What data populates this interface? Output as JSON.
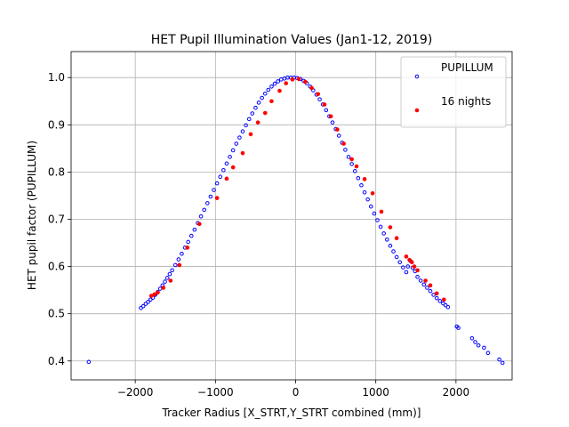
{
  "chart_data": {
    "type": "scatter",
    "title": "HET Pupil Illumination Values (Jan1-12, 2019)",
    "xlabel": "Tracker Radius [X_STRT,Y_STRT combined (mm)]",
    "ylabel": "HET pupil factor (PUPILLUM)",
    "xlim": [
      -2800,
      2700
    ],
    "ylim": [
      0.36,
      1.055
    ],
    "xticks": [
      -2000,
      -1000,
      0,
      1000,
      2000
    ],
    "yticks": [
      0.4,
      0.5,
      0.6,
      0.7,
      0.8,
      0.9,
      1.0
    ],
    "xtick_labels": [
      "−2000",
      "−1000",
      "0",
      "1000",
      "2000"
    ],
    "ytick_labels": [
      "0.4",
      "0.5",
      "0.6",
      "0.7",
      "0.8",
      "0.9",
      "1.0"
    ],
    "grid": true,
    "legend_position": "top-right",
    "series": [
      {
        "name": "PUPILLUM",
        "color": "#0000ff",
        "marker": "open-circle",
        "x": [
          -2580,
          -1930,
          -1900,
          -1870,
          -1840,
          -1810,
          -1780,
          -1750,
          -1720,
          -1690,
          -1660,
          -1630,
          -1600,
          -1570,
          -1540,
          -1500,
          -1460,
          -1420,
          -1380,
          -1340,
          -1300,
          -1260,
          -1220,
          -1180,
          -1140,
          -1100,
          -1060,
          -1020,
          -980,
          -940,
          -900,
          -860,
          -820,
          -780,
          -740,
          -700,
          -660,
          -620,
          -580,
          -540,
          -500,
          -460,
          -420,
          -380,
          -340,
          -300,
          -260,
          -220,
          -180,
          -140,
          -100,
          -60,
          -20,
          20,
          60,
          100,
          140,
          180,
          220,
          260,
          300,
          340,
          380,
          420,
          460,
          500,
          540,
          580,
          620,
          660,
          700,
          740,
          780,
          820,
          860,
          900,
          940,
          980,
          1020,
          1060,
          1100,
          1140,
          1180,
          1220,
          1260,
          1300,
          1340,
          1380,
          1400,
          1430,
          1460,
          1490,
          1520,
          1560,
          1600,
          1640,
          1680,
          1720,
          1760,
          1800,
          1840,
          1870,
          1900,
          2010,
          2030,
          2200,
          2240,
          2280,
          2350,
          2400,
          2540,
          2580
        ],
        "y": [
          0.398,
          0.512,
          0.516,
          0.521,
          0.525,
          0.53,
          0.534,
          0.54,
          0.546,
          0.553,
          0.56,
          0.568,
          0.576,
          0.584,
          0.592,
          0.603,
          0.615,
          0.627,
          0.64,
          0.652,
          0.665,
          0.678,
          0.692,
          0.706,
          0.72,
          0.734,
          0.748,
          0.762,
          0.776,
          0.79,
          0.804,
          0.818,
          0.832,
          0.846,
          0.86,
          0.873,
          0.886,
          0.899,
          0.912,
          0.924,
          0.936,
          0.947,
          0.957,
          0.966,
          0.974,
          0.981,
          0.987,
          0.992,
          0.996,
          0.998,
          1.0,
          1.0,
          1.0,
          0.999,
          0.997,
          0.993,
          0.988,
          0.981,
          0.973,
          0.964,
          0.954,
          0.943,
          0.931,
          0.918,
          0.905,
          0.891,
          0.877,
          0.862,
          0.847,
          0.832,
          0.817,
          0.802,
          0.787,
          0.772,
          0.757,
          0.742,
          0.727,
          0.712,
          0.698,
          0.684,
          0.67,
          0.657,
          0.644,
          0.632,
          0.62,
          0.609,
          0.598,
          0.588,
          0.6,
          0.612,
          0.597,
          0.59,
          0.578,
          0.57,
          0.562,
          0.555,
          0.548,
          0.54,
          0.533,
          0.527,
          0.522,
          0.518,
          0.514,
          0.473,
          0.47,
          0.448,
          0.44,
          0.433,
          0.428,
          0.417,
          0.403,
          0.396
        ]
      },
      {
        "name": "16 nights",
        "color": "#ff0000",
        "marker": "filled-circle",
        "x": [
          -1800,
          -1760,
          -1720,
          -1650,
          -1560,
          -1450,
          -1350,
          -1200,
          -980,
          -860,
          -780,
          -660,
          -560,
          -470,
          -380,
          -300,
          -200,
          -120,
          -40,
          40,
          120,
          200,
          280,
          360,
          440,
          520,
          600,
          700,
          760,
          860,
          960,
          1070,
          1180,
          1260,
          1380,
          1420,
          1450,
          1480,
          1520,
          1620,
          1680,
          1760,
          1850
        ],
        "y": [
          0.538,
          0.541,
          0.545,
          0.555,
          0.57,
          0.603,
          0.64,
          0.69,
          0.745,
          0.786,
          0.81,
          0.84,
          0.88,
          0.905,
          0.925,
          0.95,
          0.972,
          0.988,
          0.996,
          0.997,
          0.991,
          0.978,
          0.965,
          0.943,
          0.918,
          0.89,
          0.86,
          0.827,
          0.812,
          0.785,
          0.755,
          0.716,
          0.683,
          0.66,
          0.621,
          0.614,
          0.609,
          0.6,
          0.592,
          0.57,
          0.56,
          0.543,
          0.53
        ]
      }
    ]
  }
}
